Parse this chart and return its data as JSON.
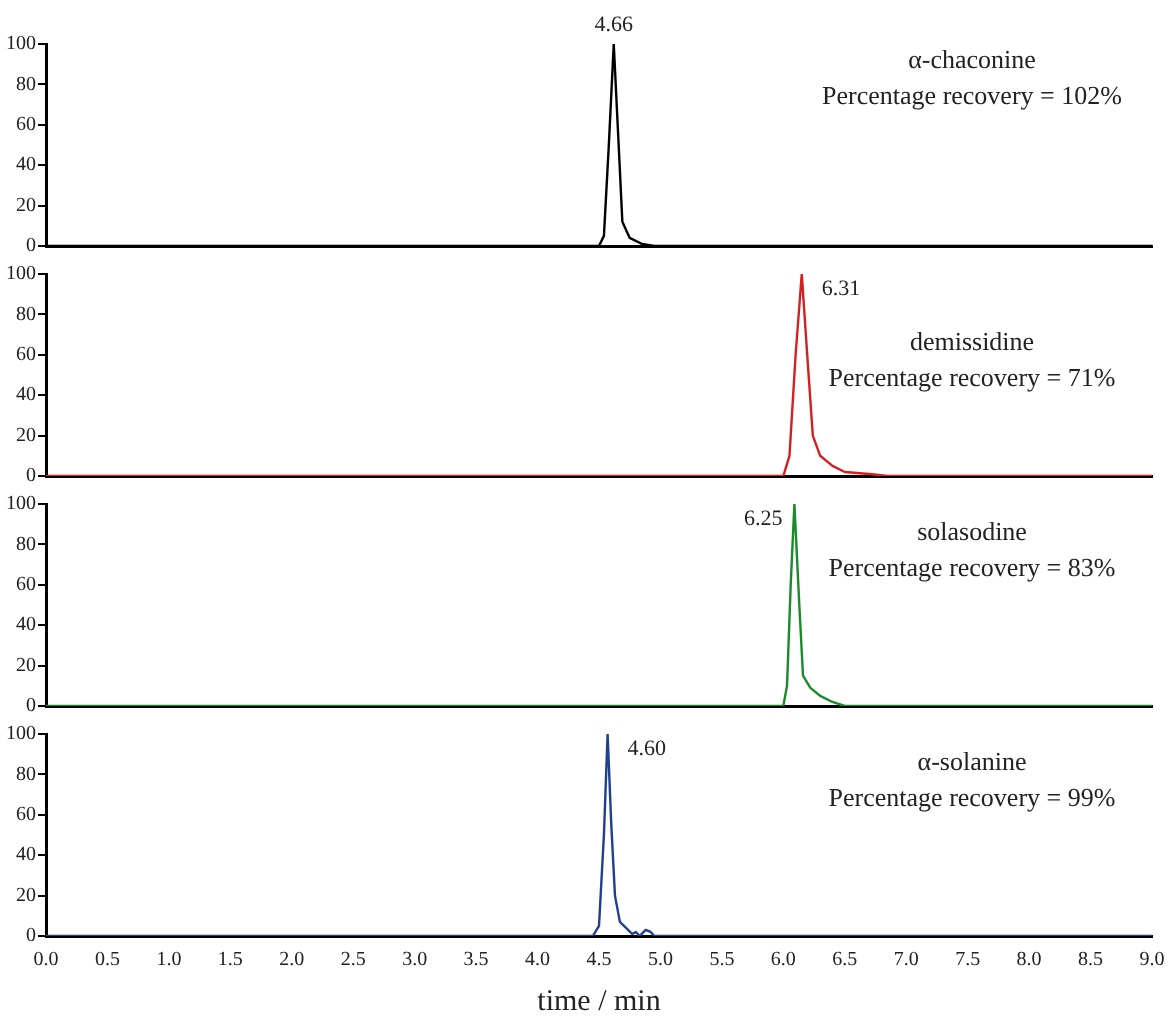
{
  "chart_data": [
    {
      "type": "line",
      "xlim": [
        0,
        9
      ],
      "ylim": [
        0,
        100
      ],
      "yticks": [
        0,
        20,
        40,
        60,
        80,
        100
      ],
      "tick_labels": "y",
      "grid": false,
      "legend": false,
      "marker": "none",
      "series": [
        {
          "color": "#000000",
          "x": [
            0,
            4.5,
            4.54,
            4.58,
            4.62,
            4.66,
            4.69,
            4.75,
            4.85,
            4.95,
            9
          ],
          "values": [
            0,
            0,
            5,
            50,
            100,
            50,
            12,
            4,
            1,
            0,
            0
          ]
        }
      ],
      "annotations": [
        {
          "text": "4.66",
          "x": 4.62,
          "y": 100
        },
        "α-chaconine",
        "Percentage recovery = 102%"
      ]
    },
    {
      "type": "line",
      "xlim": [
        0,
        9
      ],
      "ylim": [
        0,
        100
      ],
      "yticks": [
        0,
        20,
        40,
        60,
        80,
        100
      ],
      "tick_labels": "y",
      "grid": false,
      "legend": false,
      "marker": "none",
      "series": [
        {
          "color": "#d42020",
          "x": [
            0,
            6,
            6.05,
            6.1,
            6.15,
            6.2,
            6.24,
            6.3,
            6.4,
            6.5,
            6.7,
            6.85,
            9
          ],
          "values": [
            0,
            0,
            10,
            60,
            100,
            55,
            20,
            10,
            5,
            2,
            1,
            0,
            0
          ]
        }
      ],
      "annotations": [
        {
          "text": "6.31",
          "x": 6.15,
          "y": 100
        },
        "demissidine",
        "Percentage recovery = 71%"
      ]
    },
    {
      "type": "line",
      "xlim": [
        0,
        9
      ],
      "ylim": [
        0,
        100
      ],
      "yticks": [
        0,
        20,
        40,
        60,
        80,
        100
      ],
      "tick_labels": "y",
      "grid": false,
      "legend": false,
      "marker": "none",
      "series": [
        {
          "color": "#1a8a2a",
          "x": [
            0,
            6,
            6.03,
            6.06,
            6.09,
            6.13,
            6.16,
            6.22,
            6.3,
            6.4,
            6.5,
            9
          ],
          "values": [
            0,
            0,
            10,
            60,
            100,
            50,
            15,
            9,
            5,
            2,
            0,
            0
          ]
        }
      ],
      "annotations": [
        {
          "text": "6.25",
          "x": 6.09,
          "y": 100
        },
        "solasodine",
        "Percentage recovery = 83%"
      ]
    },
    {
      "type": "line",
      "xlim": [
        0,
        9
      ],
      "ylim": [
        0,
        100
      ],
      "yticks": [
        0,
        20,
        40,
        60,
        80,
        100
      ],
      "grid": false,
      "legend": false,
      "marker": "none",
      "xlabel": "time / min",
      "xticks": [
        {
          "value": 0,
          "label": "0.0"
        },
        {
          "value": 0.5,
          "label": "0.5"
        },
        {
          "value": 1,
          "label": "1.0"
        },
        {
          "value": 1.5,
          "label": "1.5"
        },
        {
          "value": 2,
          "label": "2.0"
        },
        {
          "value": 2.5,
          "label": "2.5"
        },
        {
          "value": 3,
          "label": "3.0"
        },
        {
          "value": 3.5,
          "label": "3.5"
        },
        {
          "value": 4,
          "label": "4.0"
        },
        {
          "value": 4.5,
          "label": "4.5"
        },
        {
          "value": 5,
          "label": "5.0"
        },
        {
          "value": 5.5,
          "label": "5.5"
        },
        {
          "value": 6,
          "label": "6.0"
        },
        {
          "value": 6.5,
          "label": "6.5"
        },
        {
          "value": 7,
          "label": "7.0"
        },
        {
          "value": 7.5,
          "label": "7.5"
        },
        {
          "value": 8,
          "label": "8.0"
        },
        {
          "value": 8.5,
          "label": "8.5"
        },
        {
          "value": 9,
          "label": "9.0"
        }
      ],
      "series": [
        {
          "color": "#1f3f8f",
          "x": [
            0,
            4.45,
            4.5,
            4.54,
            4.57,
            4.6,
            4.63,
            4.67,
            4.72,
            4.77,
            4.8,
            4.83,
            4.88,
            4.92,
            4.95,
            9
          ],
          "values": [
            0,
            0,
            5,
            50,
            100,
            55,
            20,
            7,
            4,
            1,
            2,
            0,
            3,
            2,
            0,
            0
          ]
        }
      ],
      "annotations": [
        {
          "text": "4.60",
          "x": 4.57,
          "y": 100
        },
        "α-solanine",
        "Percentage recovery = 99%"
      ]
    }
  ]
}
